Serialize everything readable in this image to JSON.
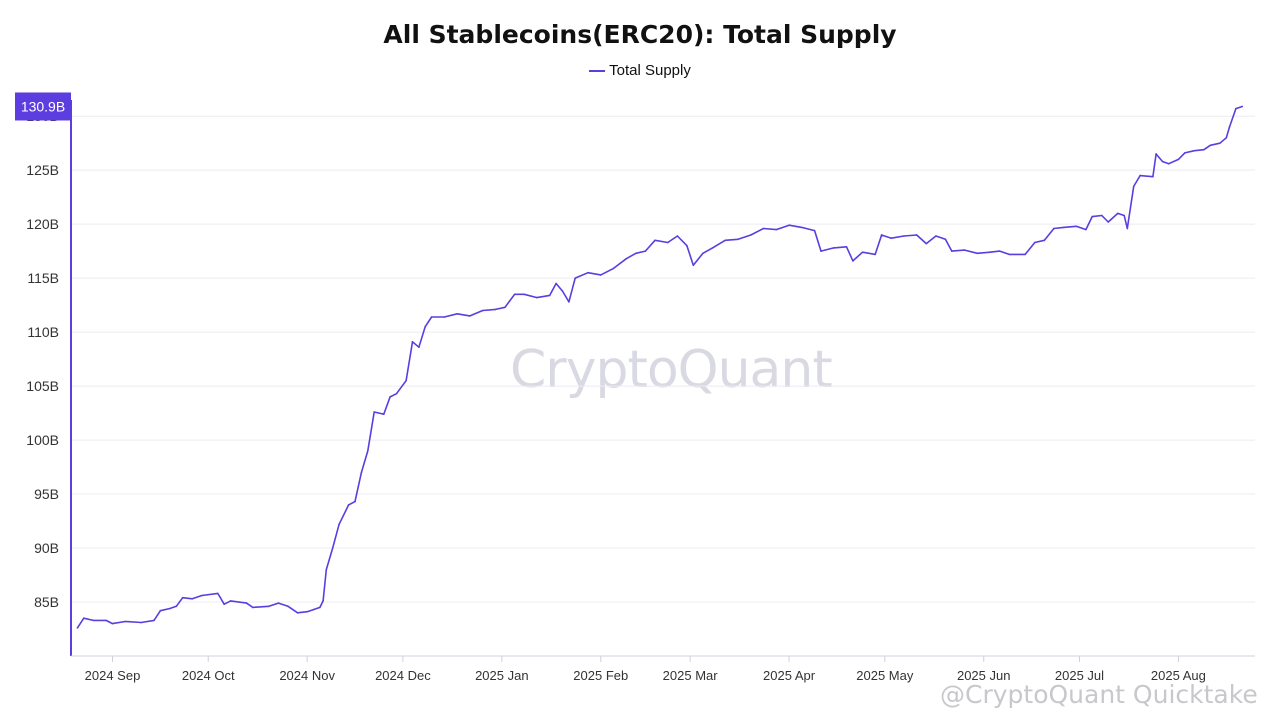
{
  "chart_data": {
    "type": "line",
    "title": "All Stablecoins(ERC20): Total Supply",
    "legend": [
      "Total Supply"
    ],
    "legend_position": "top-center",
    "grid": true,
    "ylim": [
      80,
      131.5
    ],
    "yticks": [
      85,
      90,
      95,
      100,
      105,
      110,
      115,
      120,
      125,
      130
    ],
    "ytick_labels": [
      "85B",
      "90B",
      "95B",
      "100B",
      "105B",
      "110B",
      "115B",
      "120B",
      "125B",
      "130B"
    ],
    "xlim": [
      "2024-08-19",
      "2025-08-25"
    ],
    "xticks": [
      "2024-09-01",
      "2024-10-01",
      "2024-11-01",
      "2024-12-01",
      "2025-01-01",
      "2025-02-01",
      "2025-03-01",
      "2025-04-01",
      "2025-05-01",
      "2025-06-01",
      "2025-07-01",
      "2025-08-01"
    ],
    "xtick_labels": [
      "2024 Sep",
      "2024 Oct",
      "2024 Nov",
      "2024 Dec",
      "2025 Jan",
      "2025 Feb",
      "2025 Mar",
      "2025 Apr",
      "2025 May",
      "2025 Jun",
      "2025 Jul",
      "2025 Aug"
    ],
    "last_value_label": "130.9B",
    "series": [
      {
        "name": "Total Supply",
        "color": "#5b3de0",
        "points": [
          [
            "2024-08-21",
            82.6
          ],
          [
            "2024-08-23",
            83.5
          ],
          [
            "2024-08-26",
            83.3
          ],
          [
            "2024-08-30",
            83.3
          ],
          [
            "2024-09-01",
            83.0
          ],
          [
            "2024-09-05",
            83.2
          ],
          [
            "2024-09-10",
            83.1
          ],
          [
            "2024-09-14",
            83.3
          ],
          [
            "2024-09-16",
            84.2
          ],
          [
            "2024-09-19",
            84.4
          ],
          [
            "2024-09-21",
            84.6
          ],
          [
            "2024-09-23",
            85.4
          ],
          [
            "2024-09-26",
            85.3
          ],
          [
            "2024-09-29",
            85.6
          ],
          [
            "2024-10-04",
            85.8
          ],
          [
            "2024-10-06",
            84.8
          ],
          [
            "2024-10-08",
            85.1
          ],
          [
            "2024-10-13",
            84.9
          ],
          [
            "2024-10-15",
            84.5
          ],
          [
            "2024-10-20",
            84.6
          ],
          [
            "2024-10-23",
            84.9
          ],
          [
            "2024-10-26",
            84.6
          ],
          [
            "2024-10-29",
            84.0
          ],
          [
            "2024-11-01",
            84.1
          ],
          [
            "2024-11-03",
            84.3
          ],
          [
            "2024-11-05",
            84.5
          ],
          [
            "2024-11-06",
            85.1
          ],
          [
            "2024-11-07",
            88.0
          ],
          [
            "2024-11-09",
            90.0
          ],
          [
            "2024-11-11",
            92.2
          ],
          [
            "2024-11-14",
            94.0
          ],
          [
            "2024-11-16",
            94.3
          ],
          [
            "2024-11-18",
            97.0
          ],
          [
            "2024-11-20",
            99.0
          ],
          [
            "2024-11-22",
            102.6
          ],
          [
            "2024-11-25",
            102.4
          ],
          [
            "2024-11-27",
            104.0
          ],
          [
            "2024-11-29",
            104.3
          ],
          [
            "2024-12-02",
            105.5
          ],
          [
            "2024-12-04",
            109.1
          ],
          [
            "2024-12-06",
            108.6
          ],
          [
            "2024-12-08",
            110.5
          ],
          [
            "2024-12-10",
            111.4
          ],
          [
            "2024-12-14",
            111.4
          ],
          [
            "2024-12-18",
            111.7
          ],
          [
            "2024-12-22",
            111.5
          ],
          [
            "2024-12-26",
            112.0
          ],
          [
            "2024-12-30",
            112.1
          ],
          [
            "2025-01-02",
            112.3
          ],
          [
            "2025-01-05",
            113.5
          ],
          [
            "2025-01-08",
            113.5
          ],
          [
            "2025-01-12",
            113.2
          ],
          [
            "2025-01-16",
            113.4
          ],
          [
            "2025-01-18",
            114.5
          ],
          [
            "2025-01-20",
            113.8
          ],
          [
            "2025-01-22",
            112.8
          ],
          [
            "2025-01-24",
            115.0
          ],
          [
            "2025-01-28",
            115.5
          ],
          [
            "2025-02-01",
            115.3
          ],
          [
            "2025-02-05",
            115.9
          ],
          [
            "2025-02-09",
            116.8
          ],
          [
            "2025-02-12",
            117.3
          ],
          [
            "2025-02-15",
            117.5
          ],
          [
            "2025-02-18",
            118.5
          ],
          [
            "2025-02-22",
            118.3
          ],
          [
            "2025-02-25",
            118.9
          ],
          [
            "2025-02-28",
            118.0
          ],
          [
            "2025-03-02",
            116.2
          ],
          [
            "2025-03-05",
            117.3
          ],
          [
            "2025-03-08",
            117.8
          ],
          [
            "2025-03-12",
            118.5
          ],
          [
            "2025-03-16",
            118.6
          ],
          [
            "2025-03-20",
            119.0
          ],
          [
            "2025-03-24",
            119.6
          ],
          [
            "2025-03-28",
            119.5
          ],
          [
            "2025-04-01",
            119.9
          ],
          [
            "2025-04-05",
            119.7
          ],
          [
            "2025-04-09",
            119.4
          ],
          [
            "2025-04-11",
            117.5
          ],
          [
            "2025-04-15",
            117.8
          ],
          [
            "2025-04-19",
            117.9
          ],
          [
            "2025-04-21",
            116.6
          ],
          [
            "2025-04-24",
            117.4
          ],
          [
            "2025-04-28",
            117.2
          ],
          [
            "2025-04-30",
            119.0
          ],
          [
            "2025-05-03",
            118.7
          ],
          [
            "2025-05-07",
            118.9
          ],
          [
            "2025-05-11",
            119.0
          ],
          [
            "2025-05-14",
            118.2
          ],
          [
            "2025-05-17",
            118.9
          ],
          [
            "2025-05-20",
            118.6
          ],
          [
            "2025-05-22",
            117.5
          ],
          [
            "2025-05-26",
            117.6
          ],
          [
            "2025-05-30",
            117.3
          ],
          [
            "2025-06-03",
            117.4
          ],
          [
            "2025-06-06",
            117.5
          ],
          [
            "2025-06-09",
            117.2
          ],
          [
            "2025-06-14",
            117.2
          ],
          [
            "2025-06-17",
            118.3
          ],
          [
            "2025-06-20",
            118.5
          ],
          [
            "2025-06-23",
            119.6
          ],
          [
            "2025-06-26",
            119.7
          ],
          [
            "2025-06-30",
            119.8
          ],
          [
            "2025-07-03",
            119.5
          ],
          [
            "2025-07-05",
            120.7
          ],
          [
            "2025-07-08",
            120.8
          ],
          [
            "2025-07-10",
            120.2
          ],
          [
            "2025-07-13",
            121.0
          ],
          [
            "2025-07-15",
            120.8
          ],
          [
            "2025-07-16",
            119.6
          ],
          [
            "2025-07-18",
            123.5
          ],
          [
            "2025-07-20",
            124.5
          ],
          [
            "2025-07-24",
            124.4
          ],
          [
            "2025-07-25",
            126.5
          ],
          [
            "2025-07-27",
            125.8
          ],
          [
            "2025-07-29",
            125.6
          ],
          [
            "2025-08-01",
            126.0
          ],
          [
            "2025-08-03",
            126.6
          ],
          [
            "2025-08-06",
            126.8
          ],
          [
            "2025-08-09",
            126.9
          ],
          [
            "2025-08-11",
            127.3
          ],
          [
            "2025-08-14",
            127.5
          ],
          [
            "2025-08-16",
            128.0
          ],
          [
            "2025-08-17",
            129.0
          ],
          [
            "2025-08-19",
            130.7
          ],
          [
            "2025-08-21",
            130.9
          ]
        ]
      }
    ]
  },
  "watermark": "CryptoQuant",
  "credit": "@CryptoQuant Quicktake"
}
